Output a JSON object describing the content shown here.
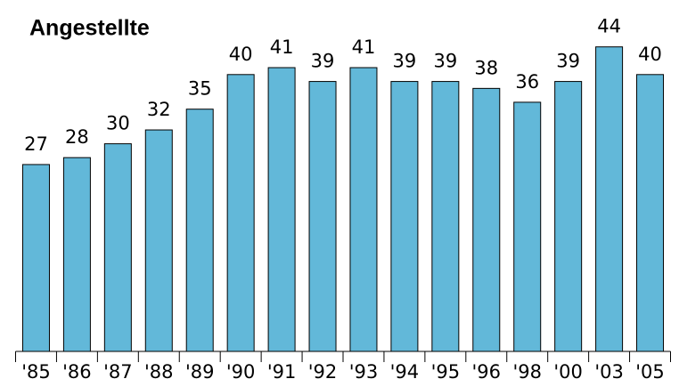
{
  "chart_data": {
    "type": "bar",
    "title": "Angestellte",
    "categories": [
      "'85",
      "'86",
      "'87",
      "'88",
      "'89",
      "'90",
      "'91",
      "'92",
      "'93",
      "'94",
      "'95",
      "'96",
      "'98",
      "'00",
      "'03",
      "'05"
    ],
    "values": [
      27,
      28,
      30,
      32,
      35,
      40,
      41,
      39,
      41,
      39,
      39,
      38,
      36,
      39,
      44,
      40
    ],
    "color": "#62b8d9"
  }
}
